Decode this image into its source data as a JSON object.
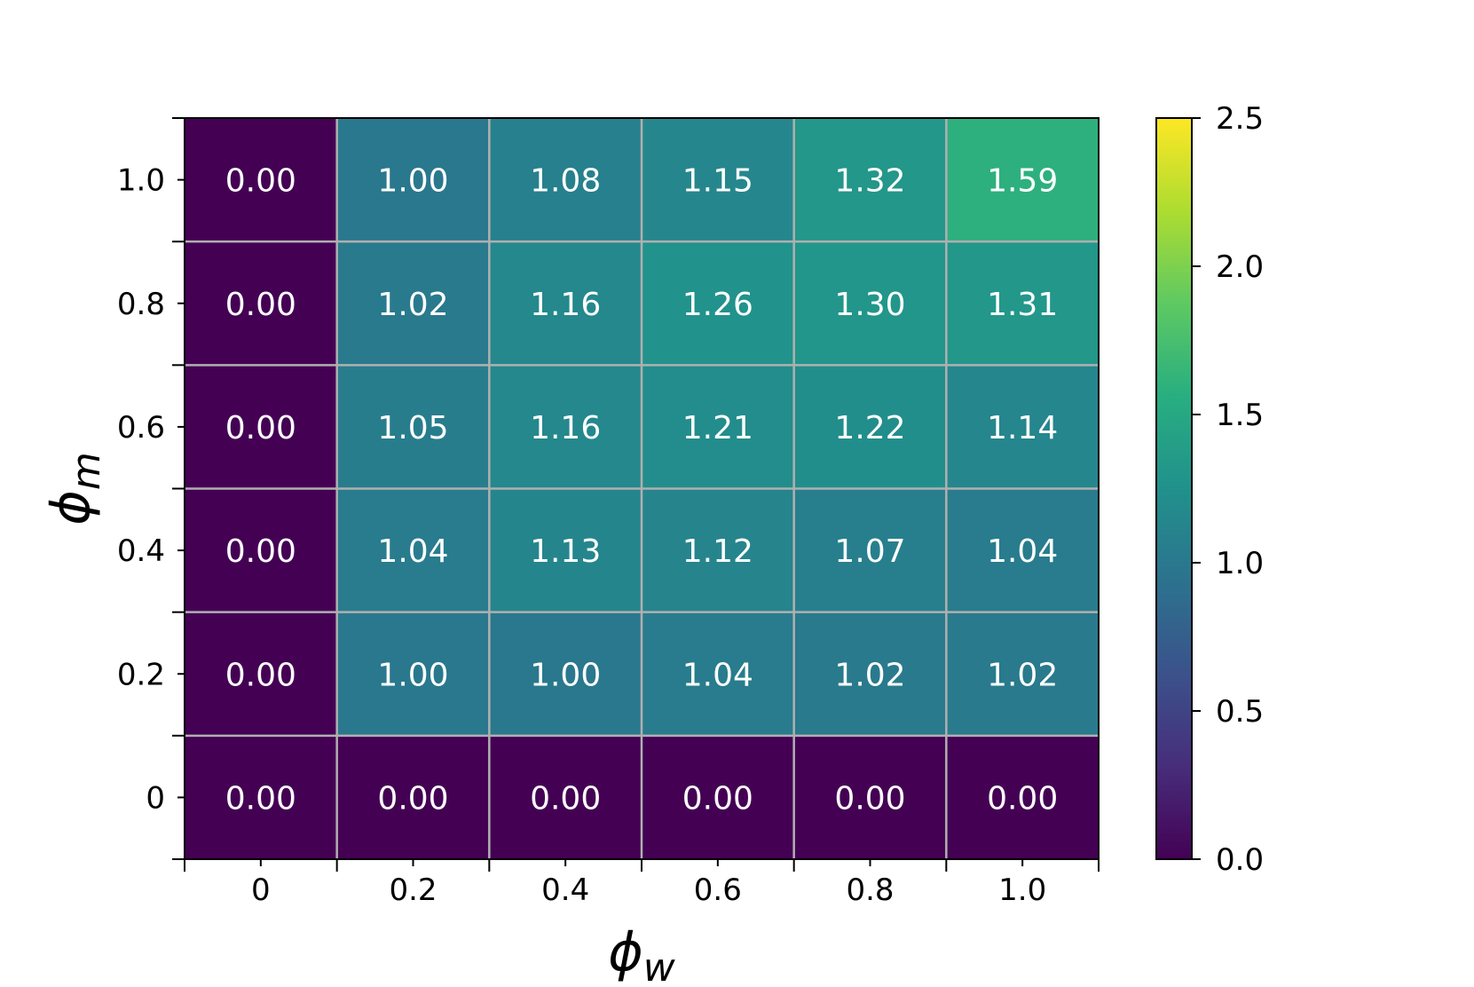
{
  "chart_data": {
    "type": "heatmap",
    "x_categories": [
      "0",
      "0.2",
      "0.4",
      "0.6",
      "0.8",
      "1.0"
    ],
    "y_categories": [
      "0",
      "0.2",
      "0.4",
      "0.6",
      "0.8",
      "1.0"
    ],
    "values": [
      [
        0.0,
        0.0,
        0.0,
        0.0,
        0.0,
        0.0
      ],
      [
        0.0,
        1.0,
        1.0,
        1.04,
        1.02,
        1.02
      ],
      [
        0.0,
        1.04,
        1.13,
        1.12,
        1.07,
        1.04
      ],
      [
        0.0,
        1.05,
        1.16,
        1.21,
        1.22,
        1.14
      ],
      [
        0.0,
        1.02,
        1.16,
        1.26,
        1.3,
        1.31
      ],
      [
        0.0,
        1.0,
        1.08,
        1.15,
        1.32,
        1.59
      ]
    ],
    "cell_labels": [
      [
        "0.00",
        "0.00",
        "0.00",
        "0.00",
        "0.00",
        "0.00"
      ],
      [
        "0.00",
        "1.00",
        "1.00",
        "1.04",
        "1.02",
        "1.02"
      ],
      [
        "0.00",
        "1.04",
        "1.13",
        "1.12",
        "1.07",
        "1.04"
      ],
      [
        "0.00",
        "1.05",
        "1.16",
        "1.21",
        "1.22",
        "1.14"
      ],
      [
        "0.00",
        "1.02",
        "1.16",
        "1.26",
        "1.30",
        "1.31"
      ],
      [
        "0.00",
        "1.00",
        "1.08",
        "1.15",
        "1.32",
        "1.59"
      ]
    ],
    "xlabel": {
      "symbol": "ϕ",
      "subscript": "w"
    },
    "ylabel": {
      "symbol": "ϕ",
      "subscript": "m"
    },
    "colorbar": {
      "colormap": "viridis",
      "range": [
        0.0,
        2.5
      ],
      "ticks": [
        "0.0",
        "0.5",
        "1.0",
        "1.5",
        "2.0",
        "2.5"
      ]
    },
    "grid": true,
    "grid_color": "#b0b0b0"
  }
}
